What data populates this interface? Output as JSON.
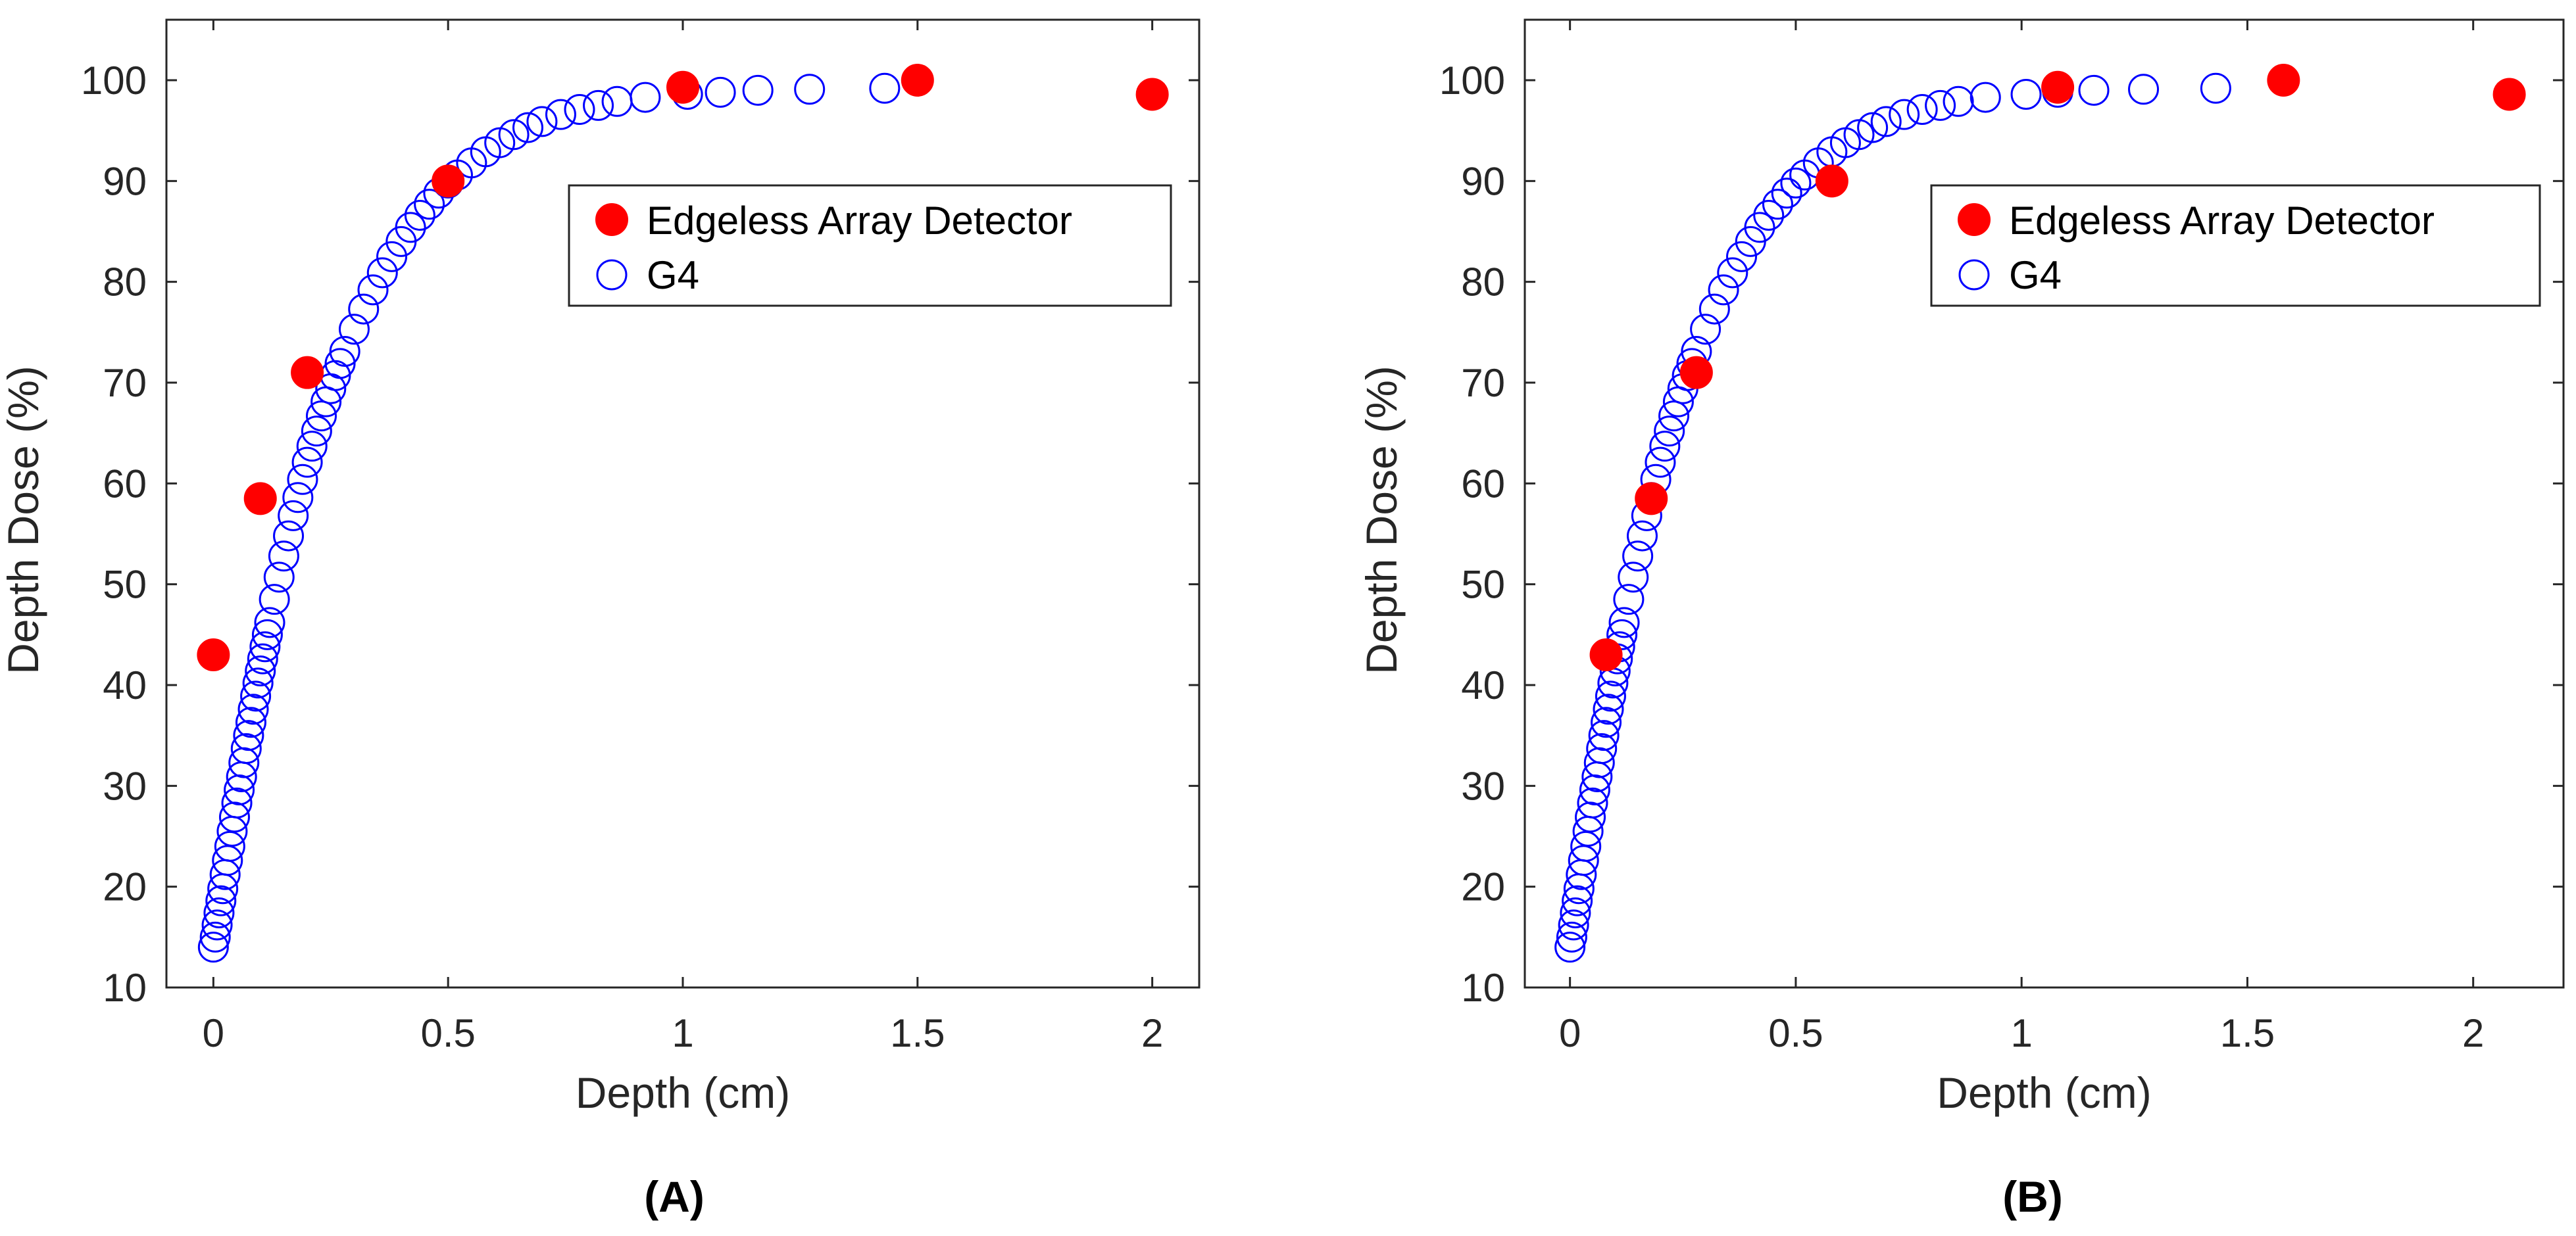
{
  "colors": {
    "edgeless": "#ff0000",
    "g4": "#0000ff",
    "axis": "#262626",
    "text": "#262626",
    "panel_label": "#000000"
  },
  "chart_data": [
    {
      "type": "scatter",
      "panel_label": "(A)",
      "title": "",
      "xlabel": "Depth (cm)",
      "ylabel": "Depth Dose (%)",
      "xlim": [
        -0.1,
        2.1
      ],
      "ylim": [
        10,
        106
      ],
      "x_ticks": [
        0,
        0.5,
        1,
        1.5,
        2
      ],
      "x_tick_labels": [
        "0",
        "0.5",
        "1",
        "1.5",
        "2"
      ],
      "y_ticks": [
        10,
        20,
        30,
        40,
        50,
        60,
        70,
        80,
        90,
        100
      ],
      "y_tick_labels": [
        "10",
        "20",
        "30",
        "40",
        "50",
        "60",
        "70",
        "80",
        "90",
        "100"
      ],
      "grid": false,
      "legend_position": "upper-right",
      "series": [
        {
          "name": "Edgeless Array Detector",
          "marker": "filled-circle",
          "x": [
            0,
            0.1,
            0.2,
            0.5,
            1.0,
            1.5,
            2.0
          ],
          "y": [
            43,
            58.5,
            71,
            90,
            99.3,
            100,
            98.6
          ]
        },
        {
          "name": "G4",
          "marker": "open-circle",
          "x": [
            0,
            0.004,
            0.008,
            0.012,
            0.016,
            0.02,
            0.025,
            0.03,
            0.035,
            0.04,
            0.045,
            0.05,
            0.055,
            0.06,
            0.065,
            0.07,
            0.075,
            0.08,
            0.085,
            0.09,
            0.095,
            0.1,
            0.105,
            0.11,
            0.115,
            0.12,
            0.13,
            0.14,
            0.15,
            0.16,
            0.17,
            0.18,
            0.19,
            0.2,
            0.21,
            0.22,
            0.23,
            0.24,
            0.25,
            0.26,
            0.27,
            0.28,
            0.3,
            0.32,
            0.34,
            0.36,
            0.38,
            0.4,
            0.42,
            0.44,
            0.46,
            0.48,
            0.5,
            0.52,
            0.55,
            0.58,
            0.61,
            0.64,
            0.67,
            0.7,
            0.74,
            0.78,
            0.82,
            0.86,
            0.92,
            1.01,
            1.08,
            1.16,
            1.27,
            1.43
          ],
          "y": [
            14.0,
            15.0,
            16.2,
            17.4,
            18.6,
            19.8,
            21.2,
            22.6,
            24.0,
            25.5,
            26.9,
            28.3,
            29.6,
            30.9,
            32.3,
            33.7,
            35.0,
            36.3,
            37.6,
            38.9,
            40.2,
            41.4,
            42.6,
            43.8,
            45.0,
            46.2,
            48.5,
            50.7,
            52.8,
            54.8,
            56.8,
            58.6,
            60.4,
            62.1,
            63.7,
            65.2,
            66.7,
            68.1,
            69.4,
            70.7,
            71.9,
            73.1,
            75.3,
            77.3,
            79.2,
            80.9,
            82.5,
            84.0,
            85.4,
            86.6,
            87.7,
            88.8,
            89.8,
            90.6,
            91.8,
            92.9,
            93.8,
            94.6,
            95.3,
            95.9,
            96.6,
            97.1,
            97.5,
            97.9,
            98.3,
            98.6,
            98.8,
            99.0,
            99.1,
            99.2
          ]
        }
      ]
    },
    {
      "type": "scatter",
      "panel_label": "(B)",
      "title": "",
      "xlabel": "Depth (cm)",
      "ylabel": "Depth Dose (%)",
      "xlim": [
        -0.1,
        2.2
      ],
      "ylim": [
        10,
        106
      ],
      "x_ticks": [
        0,
        0.5,
        1,
        1.5,
        2
      ],
      "x_tick_labels": [
        "0",
        "0.5",
        "1",
        "1.5",
        "2"
      ],
      "y_ticks": [
        10,
        20,
        30,
        40,
        50,
        60,
        70,
        80,
        90,
        100
      ],
      "y_tick_labels": [
        "10",
        "20",
        "30",
        "40",
        "50",
        "60",
        "70",
        "80",
        "90",
        "100"
      ],
      "grid": false,
      "legend_position": "upper-right",
      "series": [
        {
          "name": "Edgeless Array Detector",
          "marker": "filled-circle",
          "x": [
            0.08,
            0.18,
            0.28,
            0.58,
            1.08,
            1.58,
            2.08
          ],
          "y": [
            43,
            58.5,
            71,
            90,
            99.3,
            100,
            98.6
          ]
        },
        {
          "name": "G4",
          "marker": "open-circle",
          "x": [
            0,
            0.004,
            0.008,
            0.012,
            0.016,
            0.02,
            0.025,
            0.03,
            0.035,
            0.04,
            0.045,
            0.05,
            0.055,
            0.06,
            0.065,
            0.07,
            0.075,
            0.08,
            0.085,
            0.09,
            0.095,
            0.1,
            0.105,
            0.11,
            0.115,
            0.12,
            0.13,
            0.14,
            0.15,
            0.16,
            0.17,
            0.18,
            0.19,
            0.2,
            0.21,
            0.22,
            0.23,
            0.24,
            0.25,
            0.26,
            0.27,
            0.28,
            0.3,
            0.32,
            0.34,
            0.36,
            0.38,
            0.4,
            0.42,
            0.44,
            0.46,
            0.48,
            0.5,
            0.52,
            0.55,
            0.58,
            0.61,
            0.64,
            0.67,
            0.7,
            0.74,
            0.78,
            0.82,
            0.86,
            0.92,
            1.01,
            1.08,
            1.16,
            1.27,
            1.43
          ],
          "y": [
            14.0,
            15.0,
            16.2,
            17.4,
            18.6,
            19.8,
            21.2,
            22.6,
            24.0,
            25.5,
            26.9,
            28.3,
            29.6,
            30.9,
            32.3,
            33.7,
            35.0,
            36.3,
            37.6,
            38.9,
            40.2,
            41.4,
            42.6,
            43.8,
            45.0,
            46.2,
            48.5,
            50.7,
            52.8,
            54.8,
            56.8,
            58.6,
            60.4,
            62.1,
            63.7,
            65.2,
            66.7,
            68.1,
            69.4,
            70.7,
            71.9,
            73.1,
            75.3,
            77.3,
            79.2,
            80.9,
            82.5,
            84.0,
            85.4,
            86.6,
            87.7,
            88.8,
            89.8,
            90.6,
            91.8,
            92.9,
            93.8,
            94.6,
            95.3,
            95.9,
            96.6,
            97.1,
            97.5,
            97.9,
            98.3,
            98.6,
            98.8,
            99.0,
            99.1,
            99.2
          ]
        }
      ]
    }
  ]
}
